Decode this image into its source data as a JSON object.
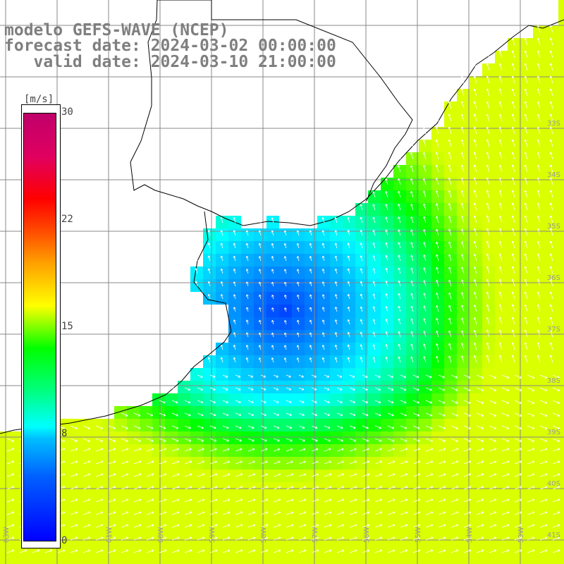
{
  "title": {
    "line1": "modelo GEFS-WAVE (NCEP)",
    "line2": "forecast date: 2024-03-02 00:00:00",
    "line3": "   valid date: 2024-03-10 21:00:00"
  },
  "colorbar": {
    "unit": "[m/s]",
    "ticks": [
      "30",
      "22",
      "15",
      "8",
      "0"
    ],
    "colors": [
      "#0000ff",
      "#00c0ff",
      "#00ffff",
      "#00ff00",
      "#ffff00",
      "#ff8000",
      "#ff0000",
      "#c0006a"
    ]
  },
  "axes": {
    "lat_labels": [
      "33S",
      "34S",
      "35S",
      "36S",
      "37S",
      "38S",
      "39S",
      "40S",
      "41S"
    ],
    "lon_labels": [
      "63W",
      "62W",
      "61W",
      "60W",
      "59W",
      "58W",
      "57W",
      "56W",
      "55W",
      "54W",
      "53W",
      "52W",
      "51W"
    ]
  },
  "colors": {
    "land": "#ffffff",
    "grid": "#888888",
    "coastline": "#000000",
    "arrows": "#ffffff"
  }
}
